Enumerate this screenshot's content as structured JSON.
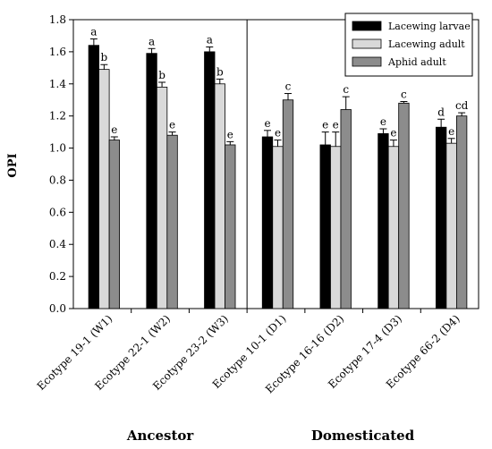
{
  "chart_data": {
    "type": "bar",
    "title": "",
    "xlabel": "",
    "ylabel": "OPI",
    "ylim": [
      0,
      1.8
    ],
    "yticks": [
      "0.0",
      "0.2",
      "0.4",
      "0.6",
      "0.8",
      "1.0",
      "1.2",
      "1.4",
      "1.6",
      "1.8"
    ],
    "categories": [
      "Ecotype 19-1 (W1)",
      "Ecotype 22-1 (W2)",
      "Ecotype 23-2 (W3)",
      "Ecotype 10-1 (D1)",
      "Ecotype 16-16 (D2)",
      "Ecotype 17-4 (D3)",
      "Ecotype 66-2 (D4)"
    ],
    "groups": [
      {
        "label": "Ancestor",
        "categories": [
          0,
          1,
          2
        ]
      },
      {
        "label": "Domesticated",
        "categories": [
          3,
          4,
          5,
          6
        ]
      }
    ],
    "series": [
      {
        "name": "Lacewing larvae",
        "color": "#000000",
        "values": [
          1.64,
          1.59,
          1.6,
          1.07,
          1.02,
          1.09,
          1.13
        ],
        "errors": [
          0.04,
          0.03,
          0.03,
          0.04,
          0.08,
          0.03,
          0.05
        ],
        "letters": [
          "a",
          "a",
          "a",
          "e",
          "e",
          "e",
          "d"
        ]
      },
      {
        "name": "Lacewing adult",
        "color": "#d9d9d9",
        "values": [
          1.49,
          1.38,
          1.4,
          1.01,
          1.01,
          1.01,
          1.03
        ],
        "errors": [
          0.03,
          0.03,
          0.03,
          0.04,
          0.09,
          0.04,
          0.03
        ],
        "letters": [
          "b",
          "b",
          "b",
          "e",
          "e",
          "e",
          "e"
        ]
      },
      {
        "name": "Aphid adult",
        "color": "#8c8c8c",
        "values": [
          1.05,
          1.08,
          1.02,
          1.3,
          1.24,
          1.28,
          1.2
        ],
        "errors": [
          0.02,
          0.02,
          0.02,
          0.04,
          0.08,
          0.01,
          0.02
        ],
        "letters": [
          "e",
          "e",
          "e",
          "c",
          "c",
          "c",
          "cd"
        ]
      }
    ],
    "legend": "top-right",
    "grid": false
  }
}
